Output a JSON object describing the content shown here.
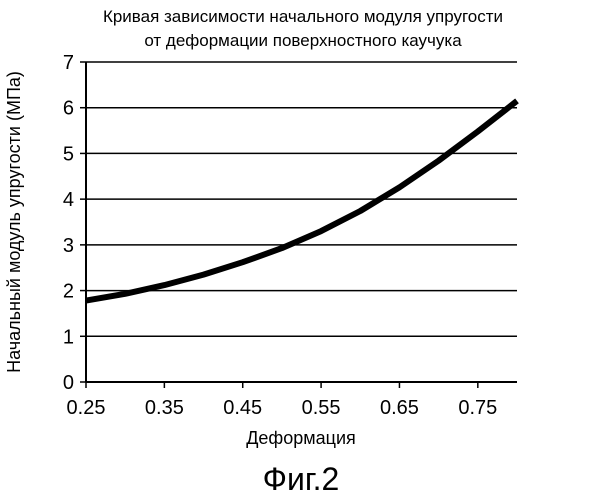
{
  "chart_data": {
    "type": "line",
    "title_lines": [
      "Кривая зависимости начального модуля упругости",
      "от деформации поверхностного каучука"
    ],
    "xlabel": "Деформация",
    "ylabel": "Начальный модуль упругости (МПа)",
    "xlim": [
      0.25,
      0.8
    ],
    "ylim": [
      0,
      7
    ],
    "x_ticks": [
      "0.25",
      "0.35",
      "0.45",
      "0.55",
      "0.65",
      "0.75"
    ],
    "x_tick_values": [
      0.25,
      0.35,
      0.45,
      0.55,
      0.65,
      0.75
    ],
    "y_ticks": [
      "0",
      "1",
      "2",
      "3",
      "4",
      "5",
      "6",
      "7"
    ],
    "y_tick_values": [
      0,
      1,
      2,
      3,
      4,
      5,
      6,
      7
    ],
    "grid": "horizontal",
    "series": [
      {
        "x": [
          0.25,
          0.3,
          0.35,
          0.4,
          0.45,
          0.5,
          0.55,
          0.6,
          0.65,
          0.7,
          0.75,
          0.8
        ],
        "y": [
          1.78,
          1.93,
          2.12,
          2.35,
          2.62,
          2.93,
          3.3,
          3.74,
          4.26,
          4.84,
          5.48,
          6.15
        ]
      }
    ]
  },
  "figure_caption": "Фиг.2"
}
